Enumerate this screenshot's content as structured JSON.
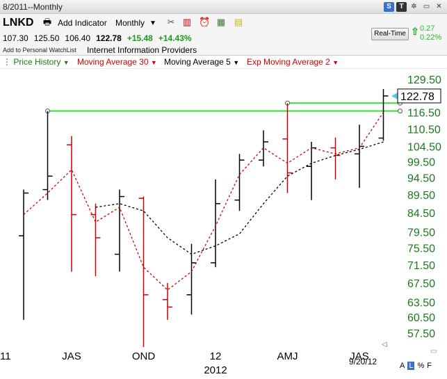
{
  "window": {
    "title": "8/2011--Monthly"
  },
  "header": {
    "symbol": "LNKD",
    "add_indicator": "Add Indicator",
    "period": "Monthly",
    "open": "107.30",
    "high": "125.50",
    "low": "106.40",
    "last": "122.78",
    "change": "+15.48",
    "change_pct": "+14.43%",
    "watchlist": "Add to Personal WatchList",
    "industry": "Internet Information Providers",
    "realtime_label": "Real-Time",
    "rt_change": "0.27",
    "rt_change_pct": "0.22%"
  },
  "legend": {
    "price_history": "Price History",
    "ma30": "Moving Average 30",
    "ma5": "Moving Average 5",
    "ema2": "Exp Moving Average 2"
  },
  "footer": {
    "date": "9/20/12",
    "mode_a": "A",
    "mode_l": "L",
    "mode_pct": "%",
    "mode_f": "F"
  },
  "colors": {
    "up_bar": "#000000",
    "down_bar": "#cc0000",
    "ma5_line": "#000000",
    "ema2_line": "#cc0000",
    "trendline": "#33dd33",
    "axis_label": "#1a7a1a",
    "legend_price": "#1a7a1a",
    "legend_ma30": "#cc0000",
    "legend_ma5": "#000000",
    "legend_ema2": "#cc0000"
  },
  "chart_data": {
    "type": "bar",
    "subtype": "ohlc",
    "title": "",
    "xlabel": "",
    "ylabel": "",
    "y_scale": "log",
    "ylim": [
      55,
      135
    ],
    "y_ticks": [
      "129.50",
      "116.50",
      "110.50",
      "104.50",
      "99.50",
      "94.50",
      "89.50",
      "84.50",
      "79.50",
      "75.50",
      "71.50",
      "67.50",
      "63.50",
      "60.50",
      "57.50"
    ],
    "current_price_label": "122.78",
    "x_tick_labels": [
      {
        "label": "11",
        "month_index": 0
      },
      {
        "label": "JAS",
        "month_index": 2
      },
      {
        "label": "OND",
        "month_index": 5
      },
      {
        "label": "12",
        "month_index": 8
      },
      {
        "label": "2012",
        "month_index": 8
      },
      {
        "label": "AMJ",
        "month_index": 11
      },
      {
        "label": "JAS",
        "month_index": 14
      }
    ],
    "months": [
      "Jun 2011",
      "Jul 2011",
      "Aug 2011",
      "Sep 2011",
      "Oct 2011",
      "Nov 2011",
      "Dec 2011",
      "Jan 2012",
      "Feb 2012",
      "Mar 2012",
      "Apr 2012",
      "May 2012",
      "Jun 2012",
      "Jul 2012",
      "Aug 2012",
      "Sep 2012"
    ],
    "ohlc": [
      {
        "month": "Jun 2011",
        "open": 78.5,
        "high": 91.0,
        "low": 60.0,
        "close": 90.0,
        "up": true
      },
      {
        "month": "Jul 2011",
        "open": 91.0,
        "high": 117.0,
        "low": 88.0,
        "close": 95.0,
        "up": true
      },
      {
        "month": "Aug 2011",
        "open": 105.0,
        "high": 108.0,
        "low": 70.0,
        "close": 84.0,
        "up": false
      },
      {
        "month": "Sep 2011",
        "open": 84.0,
        "high": 87.0,
        "low": 69.0,
        "close": 78.0,
        "up": false
      },
      {
        "month": "Oct 2011",
        "open": 74.0,
        "high": 91.0,
        "low": 70.0,
        "close": 89.0,
        "up": true
      },
      {
        "month": "Nov 2011",
        "open": 88.5,
        "high": 89.0,
        "low": 55.0,
        "close": 65.0,
        "up": false
      },
      {
        "month": "Dec 2011",
        "open": 64.0,
        "high": 67.5,
        "low": 60.0,
        "close": 62.5,
        "up": false
      },
      {
        "month": "Jan 2012",
        "open": 65.0,
        "high": 76.5,
        "low": 61.0,
        "close": 72.0,
        "up": true
      },
      {
        "month": "Feb 2012",
        "open": 72.0,
        "high": 94.0,
        "low": 71.0,
        "close": 87.0,
        "up": true
      },
      {
        "month": "Mar 2012",
        "open": 88.0,
        "high": 102.0,
        "low": 85.0,
        "close": 100.0,
        "up": true
      },
      {
        "month": "Apr 2012",
        "open": 100.0,
        "high": 110.0,
        "low": 98.0,
        "close": 106.0,
        "up": true
      },
      {
        "month": "May 2012",
        "open": 107.0,
        "high": 120.0,
        "low": 90.0,
        "close": 96.0,
        "up": false
      },
      {
        "month": "Jun 2012",
        "open": 98.0,
        "high": 106.0,
        "low": 88.0,
        "close": 104.0,
        "up": true
      },
      {
        "month": "Jul 2012",
        "open": 104.0,
        "high": 107.5,
        "low": 94.0,
        "close": 101.5,
        "up": false
      },
      {
        "month": "Aug 2012",
        "open": 102.0,
        "high": 112.0,
        "low": 91.5,
        "close": 104.5,
        "up": true
      },
      {
        "month": "Sep 2012",
        "open": 107.3,
        "high": 125.5,
        "low": 106.4,
        "close": 122.78,
        "up": true
      }
    ],
    "series": [
      {
        "name": "Moving Average 5",
        "style": "dashed",
        "values": [
          null,
          null,
          null,
          86.0,
          87.0,
          85.0,
          78.0,
          74.0,
          76.0,
          79.0,
          87.0,
          95.0,
          99.0,
          101.5,
          103.5,
          106.0
        ]
      },
      {
        "name": "Exp Moving Average 2",
        "style": "dashed",
        "values": [
          84.0,
          90.0,
          97.0,
          82.0,
          86.0,
          71.0,
          66.0,
          70.0,
          81.0,
          95.5,
          104.0,
          99.0,
          104.0,
          102.0,
          104.0,
          116.5
        ]
      }
    ],
    "trendlines": [
      {
        "from_month": "Jul 2011",
        "to_month": "Sep 2012",
        "value": 117.0
      },
      {
        "from_month": "May 2012",
        "to_month": "Sep 2012",
        "value": 120.0
      }
    ],
    "grid": false,
    "legend_position": "top-left"
  }
}
